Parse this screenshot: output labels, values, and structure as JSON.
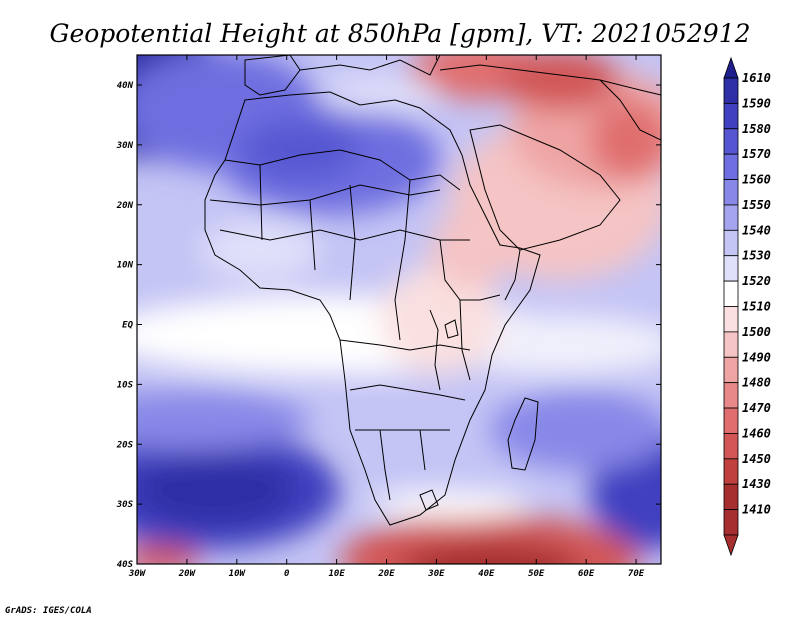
{
  "title": "Geopotential Height at 850hPa [gpm], VT: 2021052912",
  "credit": "GrADS: IGES/COLA",
  "lat_ticks": [
    "40N",
    "30N",
    "20N",
    "10N",
    "EQ",
    "10S",
    "20S",
    "30S",
    "40S"
  ],
  "lon_ticks": [
    "30W",
    "20W",
    "10W",
    "0",
    "10E",
    "20E",
    "30E",
    "40E",
    "50E",
    "60E",
    "70E"
  ],
  "colorbar": {
    "labels": [
      "1610",
      "1590",
      "1580",
      "1570",
      "1560",
      "1550",
      "1540",
      "1530",
      "1520",
      "1510",
      "1500",
      "1490",
      "1480",
      "1470",
      "1460",
      "1450",
      "1430",
      "1410"
    ],
    "colors": [
      "#1e1e8c",
      "#2e2ea6",
      "#4040c0",
      "#5656d2",
      "#6e6ee0",
      "#8888e8",
      "#a4a4ef",
      "#c4c4f5",
      "#e0e0fa",
      "#ffffff",
      "#fae0e0",
      "#f5c4c4",
      "#efa4a4",
      "#e88888",
      "#e06e6e",
      "#d25656",
      "#c04040",
      "#a62e2e"
    ]
  }
}
